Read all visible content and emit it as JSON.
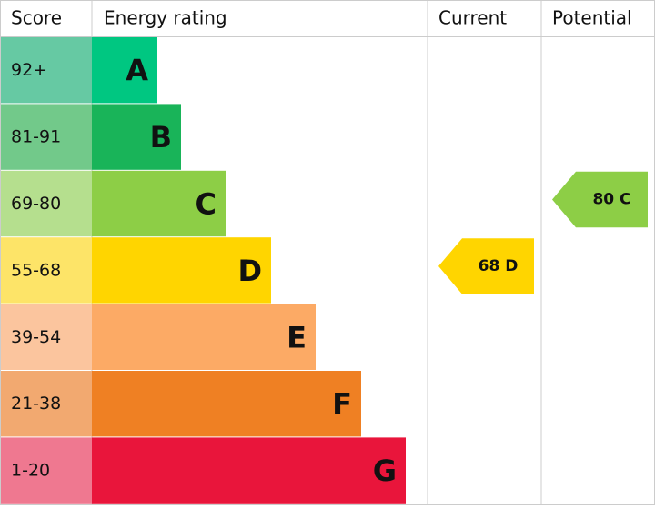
{
  "header": {
    "score": "Score",
    "rating": "Energy rating",
    "current": "Current",
    "potential": "Potential"
  },
  "bands": [
    {
      "score": "92+",
      "letter": "A",
      "color": "#00c781",
      "light": "#66c9a3"
    },
    {
      "score": "81-91",
      "letter": "B",
      "color": "#19b459",
      "light": "#72c98a"
    },
    {
      "score": "69-80",
      "letter": "C",
      "color": "#8dce46",
      "light": "#b5df8e"
    },
    {
      "score": "55-68",
      "letter": "D",
      "color": "#ffd500",
      "light": "#fde468"
    },
    {
      "score": "39-54",
      "letter": "E",
      "color": "#fcaa65",
      "light": "#fbc59e"
    },
    {
      "score": "21-38",
      "letter": "F",
      "color": "#ef8023",
      "light": "#f2a970"
    },
    {
      "score": "1-20",
      "letter": "G",
      "color": "#e9153b",
      "light": "#ef7890"
    }
  ],
  "current": {
    "label": "68 D",
    "band": 3
  },
  "potential": {
    "label": "80 C",
    "band": 2
  }
}
